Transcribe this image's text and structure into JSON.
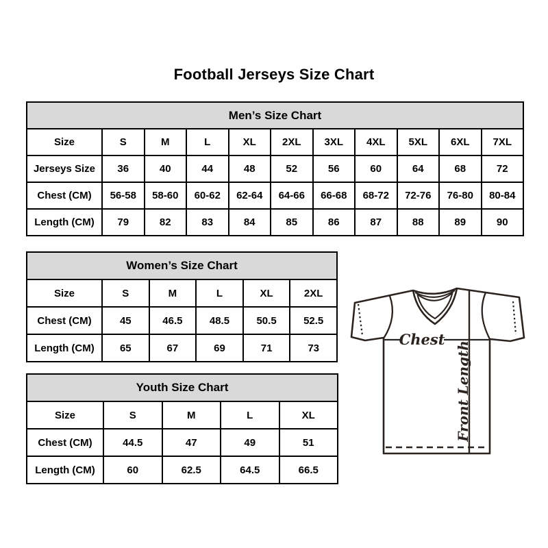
{
  "title": "Football Jerseys Size Chart",
  "tables": [
    {
      "id": "mens",
      "title": "Men’s Size Chart",
      "rows": [
        [
          "Size",
          "S",
          "M",
          "L",
          "XL",
          "2XL",
          "3XL",
          "4XL",
          "5XL",
          "6XL",
          "7XL"
        ],
        [
          "Jerseys Size",
          "36",
          "40",
          "44",
          "48",
          "52",
          "56",
          "60",
          "64",
          "68",
          "72"
        ],
        [
          "Chest (CM)",
          "56-58",
          "58-60",
          "60-62",
          "62-64",
          "64-66",
          "66-68",
          "68-72",
          "72-76",
          "76-80",
          "80-84"
        ],
        [
          "Length (CM)",
          "79",
          "82",
          "83",
          "84",
          "85",
          "86",
          "87",
          "88",
          "89",
          "90"
        ]
      ]
    },
    {
      "id": "womens",
      "title": "Women’s Size Chart",
      "rows": [
        [
          "Size",
          "S",
          "M",
          "L",
          "XL",
          "2XL"
        ],
        [
          "Chest (CM)",
          "45",
          "46.5",
          "48.5",
          "50.5",
          "52.5"
        ],
        [
          "Length (CM)",
          "65",
          "67",
          "69",
          "71",
          "73"
        ]
      ]
    },
    {
      "id": "youth",
      "title": "Youth Size Chart",
      "rows": [
        [
          "Size",
          "S",
          "M",
          "L",
          "XL"
        ],
        [
          "Chest (CM)",
          "44.5",
          "47",
          "49",
          "51"
        ],
        [
          "Length (CM)",
          "60",
          "62.5",
          "64.5",
          "66.5"
        ]
      ]
    }
  ],
  "diagram": {
    "chest_label": "Chest",
    "front_length_label": "Front Length"
  },
  "colors": {
    "table_header_bg": "#d9d9d9",
    "table_border": "#000000",
    "text": "#000000",
    "diagram_stroke": "#2b2320"
  }
}
